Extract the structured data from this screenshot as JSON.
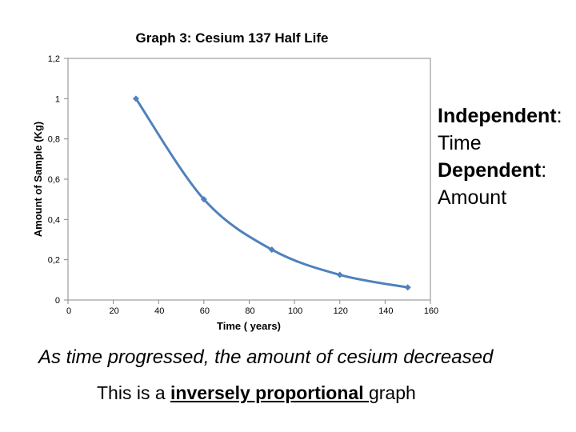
{
  "chart_data": {
    "type": "line",
    "title": "Graph 3: Cesium 137 Half Life",
    "xlabel": "Time ( years)",
    "ylabel": "Amount of Sample (Kg)",
    "xlim": [
      0,
      160
    ],
    "ylim": [
      0,
      1.2
    ],
    "x_ticks": [
      0,
      20,
      40,
      60,
      80,
      100,
      120,
      140,
      160
    ],
    "x_tick_labels": [
      "0",
      "20",
      "40",
      "60",
      "80",
      "100",
      "120",
      "140",
      "160"
    ],
    "y_ticks": [
      0,
      0.2,
      0.4,
      0.6,
      0.8,
      1,
      1.2
    ],
    "y_tick_labels": [
      "0",
      "0,2",
      "0,4",
      "0,6",
      "0,8",
      "1",
      "1,2"
    ],
    "grid": false,
    "legend": "none",
    "series": [
      {
        "x": [
          30,
          60,
          90,
          120,
          150
        ],
        "y": [
          1,
          0.5,
          0.25,
          0.125,
          0.0625
        ],
        "color": "#4f81bd",
        "marker": "diamond",
        "smooth": true
      }
    ]
  },
  "side_note": {
    "independent_label": "Independent",
    "independent_colon": ":",
    "independent_value": "Time",
    "dependent_label": "Dependent",
    "dependent_colon": ":",
    "dependent_value": "Amount"
  },
  "caption": {
    "line1": "As time progressed, the amount of cesium decreased",
    "line2_prefix": "This is a ",
    "line2_emphasis": "inversely proportional ",
    "line2_suffix": "graph"
  }
}
